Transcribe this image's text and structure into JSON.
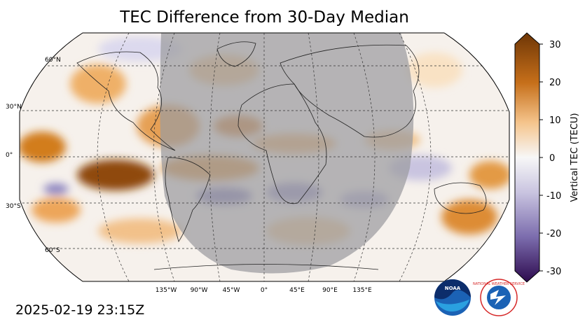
{
  "title": "TEC Difference from 30-Day Median",
  "timestamp": "2025-02-19 23:15Z",
  "map": {
    "projection": "robinson",
    "lat_labels": [
      "60°N",
      "30°N",
      "0°",
      "30°S",
      "60°S"
    ],
    "lon_labels": [
      "135°W",
      "90°W",
      "45°W",
      "0°",
      "45°E",
      "90°E",
      "135°E"
    ],
    "night_overlay": true
  },
  "colorbar": {
    "label": "Vertical TEC (TECU)",
    "ticks": [
      "30",
      "20",
      "10",
      "0",
      "-10",
      "-20",
      "-30"
    ],
    "range": [
      -30,
      30
    ],
    "colors": {
      "max": "#7a3b06",
      "high": "#e0912e",
      "mid": "#f7f7f7",
      "low": "#9a92c4",
      "min": "#2d0a4e"
    }
  },
  "logos": {
    "noaa_text": "NOAA",
    "nws_text": "NATIONAL WEATHER SERVICE"
  }
}
